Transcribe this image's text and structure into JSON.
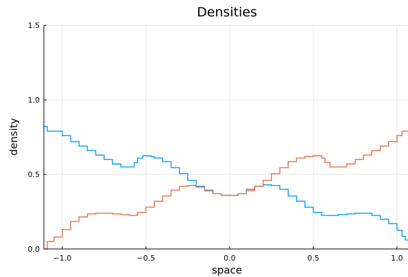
{
  "chart_data": {
    "type": "line",
    "title": "Densities",
    "xlabel": "space",
    "ylabel": "density",
    "xlim": [
      -1.11,
      1.07
    ],
    "ylim": [
      0,
      1.5
    ],
    "xticks": [
      -1.0,
      -0.5,
      0.0,
      0.5,
      1.0
    ],
    "xtick_labels": [
      "−1.0",
      "−0.5",
      "0.0",
      "0.5",
      "1.0"
    ],
    "yticks": [
      0.0,
      0.5,
      1.0,
      1.5
    ],
    "ytick_labels": [
      "0.0",
      "0.5",
      "1.0",
      "1.5"
    ],
    "grid": true,
    "legend": "none",
    "step": true,
    "series": [
      {
        "color": "#009AFA",
        "x": [
          -1.11,
          -1.09,
          -1.05,
          -1.0,
          -0.95,
          -0.9,
          -0.85,
          -0.8,
          -0.75,
          -0.7,
          -0.65,
          -0.6,
          -0.57,
          -0.55,
          -0.52,
          -0.5,
          -0.47,
          -0.45,
          -0.4,
          -0.35,
          -0.3,
          -0.25,
          -0.2,
          -0.15,
          -0.1,
          -0.05,
          0.0,
          0.05,
          0.1,
          0.15,
          0.2,
          0.25,
          0.3,
          0.35,
          0.4,
          0.45,
          0.5,
          0.55,
          0.6,
          0.65,
          0.7,
          0.75,
          0.8,
          0.85,
          0.9,
          0.95,
          1.0,
          1.03,
          1.05,
          1.07
        ],
        "y": [
          0.82,
          0.79,
          0.79,
          0.76,
          0.72,
          0.69,
          0.66,
          0.63,
          0.6,
          0.57,
          0.55,
          0.55,
          0.58,
          0.61,
          0.625,
          0.625,
          0.62,
          0.61,
          0.585,
          0.545,
          0.505,
          0.46,
          0.42,
          0.39,
          0.37,
          0.36,
          0.36,
          0.37,
          0.4,
          0.42,
          0.43,
          0.425,
          0.4,
          0.355,
          0.32,
          0.28,
          0.245,
          0.225,
          0.225,
          0.23,
          0.235,
          0.24,
          0.24,
          0.225,
          0.2,
          0.17,
          0.125,
          0.085,
          0.06,
          0.06
        ]
      },
      {
        "color": "#E26F46",
        "x": [
          -1.11,
          -1.09,
          -1.05,
          -1.0,
          -0.95,
          -0.9,
          -0.85,
          -0.8,
          -0.75,
          -0.7,
          -0.65,
          -0.6,
          -0.57,
          -0.55,
          -0.5,
          -0.45,
          -0.4,
          -0.35,
          -0.3,
          -0.25,
          -0.2,
          -0.15,
          -0.1,
          -0.05,
          0.0,
          0.05,
          0.1,
          0.15,
          0.2,
          0.25,
          0.3,
          0.35,
          0.4,
          0.45,
          0.5,
          0.52,
          0.55,
          0.57,
          0.6,
          0.65,
          0.7,
          0.75,
          0.8,
          0.85,
          0.9,
          0.95,
          1.0,
          1.03,
          1.05,
          1.07
        ],
        "y": [
          0.0,
          0.05,
          0.08,
          0.13,
          0.185,
          0.215,
          0.235,
          0.24,
          0.24,
          0.235,
          0.23,
          0.225,
          0.225,
          0.245,
          0.28,
          0.32,
          0.355,
          0.395,
          0.42,
          0.425,
          0.415,
          0.395,
          0.37,
          0.36,
          0.36,
          0.37,
          0.39,
          0.42,
          0.46,
          0.505,
          0.545,
          0.585,
          0.61,
          0.62,
          0.625,
          0.625,
          0.61,
          0.58,
          0.55,
          0.55,
          0.57,
          0.6,
          0.63,
          0.66,
          0.69,
          0.72,
          0.76,
          0.79,
          0.79,
          0.79
        ]
      }
    ]
  }
}
